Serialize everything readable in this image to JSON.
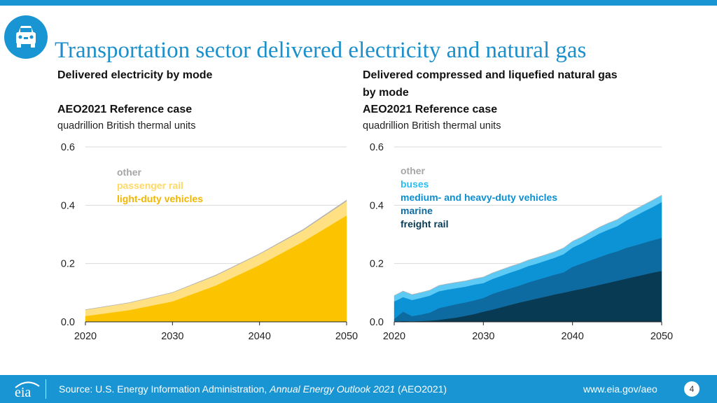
{
  "title": "Transportation sector delivered electricity and natural gas",
  "footer": {
    "source_prefix": "Source: U.S. Energy Information Administration, ",
    "source_italic": "Annual Energy Outlook 2021",
    "source_suffix": " (AEO2021)",
    "url": "www.eia.gov/aeo",
    "page": "4"
  },
  "left_panel": {
    "heading": "Delivered electricity by mode",
    "case": "AEO2021 Reference case",
    "units": "quadrillion British thermal units"
  },
  "right_panel": {
    "heading_line1": "Delivered compressed and liquefied natural gas",
    "heading_line2": "by mode",
    "case": "AEO2021 Reference case",
    "units": "quadrillion British thermal units"
  },
  "chart_data": [
    {
      "type": "area",
      "stacked": true,
      "title": "Delivered electricity by mode",
      "ylabel": "quadrillion British thermal units",
      "x": [
        2020,
        2025,
        2030,
        2035,
        2040,
        2045,
        2050
      ],
      "xticks": [
        "2020",
        "2030",
        "2040",
        "2050"
      ],
      "yticks": [
        "0.0",
        "0.2",
        "0.4",
        "0.6"
      ],
      "xlim": [
        2020,
        2050
      ],
      "ylim": [
        0,
        0.6
      ],
      "legend_position": "top-left",
      "series": [
        {
          "name": "light-duty vehicles",
          "color": "#fcc400",
          "values": [
            0.02,
            0.04,
            0.07,
            0.125,
            0.195,
            0.275,
            0.365
          ]
        },
        {
          "name": "passenger rail",
          "color": "#ffe083",
          "values": [
            0.021,
            0.025,
            0.03,
            0.034,
            0.037,
            0.039,
            0.049
          ]
        },
        {
          "name": "other",
          "color": "#b3b3b3",
          "values": [
            0.001,
            0.001,
            0.001,
            0.002,
            0.002,
            0.003,
            0.004
          ]
        }
      ]
    },
    {
      "type": "area",
      "stacked": true,
      "title": "Delivered compressed and liquefied natural gas by mode",
      "ylabel": "quadrillion British thermal units",
      "x": [
        2020,
        2021,
        2022,
        2023,
        2024,
        2025,
        2026,
        2027,
        2028,
        2029,
        2030,
        2031,
        2032,
        2033,
        2034,
        2035,
        2036,
        2037,
        2038,
        2039,
        2040,
        2041,
        2042,
        2043,
        2044,
        2045,
        2046,
        2047,
        2048,
        2049,
        2050
      ],
      "xticks": [
        "2020",
        "2030",
        "2040",
        "2050"
      ],
      "yticks": [
        "0.0",
        "0.2",
        "0.4",
        "0.6"
      ],
      "xlim": [
        2020,
        2050
      ],
      "ylim": [
        0,
        0.6
      ],
      "legend_position": "top-left",
      "series": [
        {
          "name": "freight rail",
          "color": "#083a53",
          "values": [
            0.0,
            0.003,
            0.002,
            0.003,
            0.004,
            0.007,
            0.011,
            0.015,
            0.021,
            0.027,
            0.035,
            0.042,
            0.05,
            0.058,
            0.066,
            0.073,
            0.08,
            0.087,
            0.094,
            0.1,
            0.107,
            0.113,
            0.12,
            0.127,
            0.134,
            0.141,
            0.148,
            0.155,
            0.162,
            0.169,
            0.175
          ]
        },
        {
          "name": "marine",
          "color": "#0d6ba1",
          "values": [
            0.01,
            0.032,
            0.018,
            0.022,
            0.028,
            0.04,
            0.043,
            0.046,
            0.046,
            0.047,
            0.047,
            0.054,
            0.056,
            0.057,
            0.058,
            0.062,
            0.064,
            0.066,
            0.068,
            0.07,
            0.082,
            0.087,
            0.091,
            0.095,
            0.099,
            0.101,
            0.106,
            0.107,
            0.109,
            0.111,
            0.113
          ]
        },
        {
          "name": "medium- and heavy-duty vehicles",
          "color": "#0b93d6",
          "values": [
            0.06,
            0.05,
            0.055,
            0.057,
            0.058,
            0.058,
            0.057,
            0.055,
            0.054,
            0.054,
            0.051,
            0.051,
            0.052,
            0.054,
            0.055,
            0.056,
            0.056,
            0.057,
            0.058,
            0.062,
            0.066,
            0.069,
            0.075,
            0.081,
            0.083,
            0.086,
            0.093,
            0.101,
            0.108,
            0.114,
            0.123
          ]
        },
        {
          "name": "buses",
          "color": "#5ccaf4",
          "values": [
            0.02,
            0.02,
            0.018,
            0.018,
            0.018,
            0.019,
            0.019,
            0.019,
            0.019,
            0.019,
            0.02,
            0.02,
            0.02,
            0.02,
            0.02,
            0.02,
            0.02,
            0.02,
            0.02,
            0.021,
            0.021,
            0.021,
            0.021,
            0.021,
            0.022,
            0.022,
            0.022,
            0.022,
            0.022,
            0.023,
            0.023
          ]
        },
        {
          "name": "other",
          "color": "#b3b3b3",
          "values": [
            0.0,
            0.001,
            0.001,
            0.001,
            0.001,
            0.001,
            0.001,
            0.001,
            0.001,
            0.001,
            0.001,
            0.001,
            0.001,
            0.001,
            0.001,
            0.001,
            0.001,
            0.001,
            0.001,
            0.001,
            0.001,
            0.001,
            0.001,
            0.001,
            0.001,
            0.001,
            0.001,
            0.001,
            0.001,
            0.001,
            0.001
          ]
        }
      ]
    }
  ]
}
